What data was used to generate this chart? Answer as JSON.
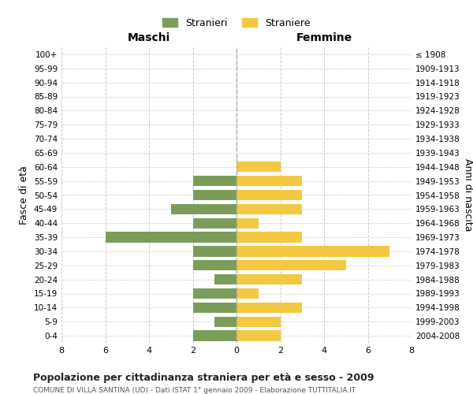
{
  "age_groups": [
    "100+",
    "95-99",
    "90-94",
    "85-89",
    "80-84",
    "75-79",
    "70-74",
    "65-69",
    "60-64",
    "55-59",
    "50-54",
    "45-49",
    "40-44",
    "35-39",
    "30-34",
    "25-29",
    "20-24",
    "15-19",
    "10-14",
    "5-9",
    "0-4"
  ],
  "birth_years": [
    "≤ 1908",
    "1909-1913",
    "1914-1918",
    "1919-1923",
    "1924-1928",
    "1929-1933",
    "1934-1938",
    "1939-1943",
    "1944-1948",
    "1949-1953",
    "1954-1958",
    "1959-1963",
    "1964-1968",
    "1969-1973",
    "1974-1978",
    "1979-1983",
    "1984-1988",
    "1989-1993",
    "1994-1998",
    "1999-2003",
    "2004-2008"
  ],
  "maschi": [
    0,
    0,
    0,
    0,
    0,
    0,
    0,
    0,
    0,
    2,
    2,
    3,
    2,
    6,
    2,
    2,
    1,
    2,
    2,
    1,
    2
  ],
  "femmine": [
    0,
    0,
    0,
    0,
    0,
    0,
    0,
    0,
    2,
    3,
    3,
    3,
    1,
    3,
    7,
    5,
    3,
    1,
    3,
    2,
    2
  ],
  "maschi_color": "#7a9e5a",
  "femmine_color": "#f5c842",
  "title": "Popolazione per cittadinanza straniera per età e sesso - 2009",
  "subtitle": "COMUNE DI VILLA SANTINA (UD) - Dati ISTAT 1° gennaio 2009 - Elaborazione TUTTITALIA.IT",
  "xlabel_left": "Maschi",
  "xlabel_right": "Femmine",
  "ylabel_left": "Fasce di età",
  "ylabel_right": "Anni di nascita",
  "legend_stranieri": "Stranieri",
  "legend_straniere": "Straniere",
  "xlim": 8,
  "background_color": "#ffffff",
  "grid_color": "#cccccc"
}
